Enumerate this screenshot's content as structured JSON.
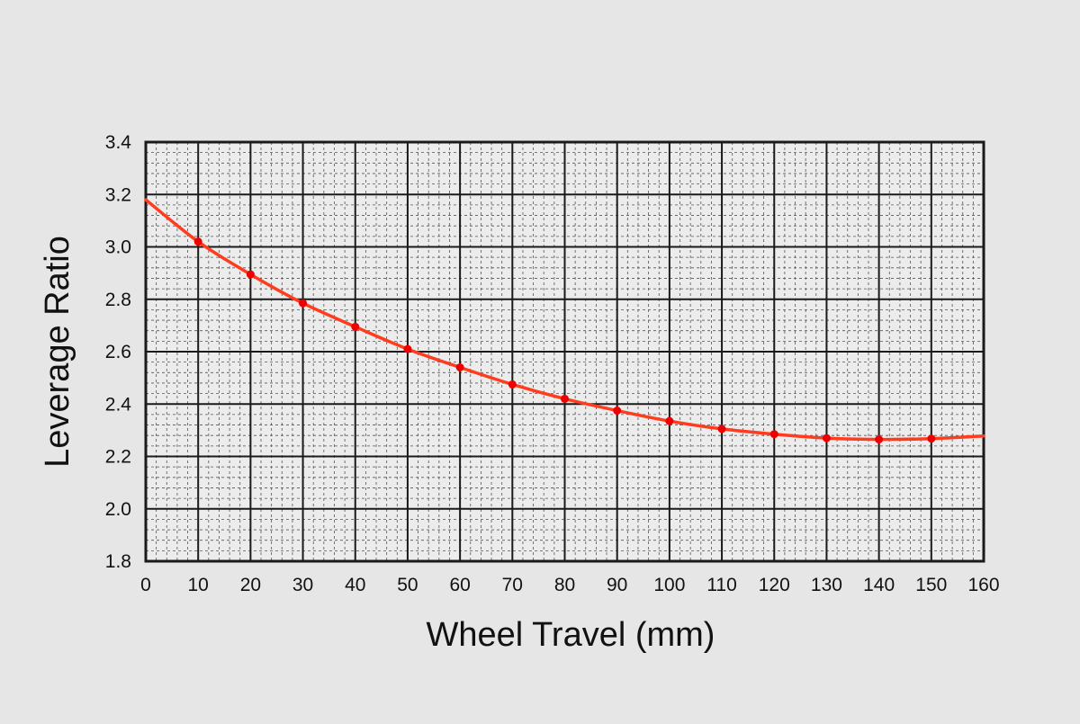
{
  "chart_data": {
    "type": "line",
    "title": "",
    "xlabel": "Wheel Travel (mm)",
    "ylabel": "Leverage Ratio",
    "xlim": [
      0,
      160
    ],
    "ylim": [
      1.8,
      3.4
    ],
    "x_ticks": [
      0,
      10,
      20,
      30,
      40,
      50,
      60,
      70,
      80,
      90,
      100,
      110,
      120,
      130,
      140,
      150,
      160
    ],
    "y_ticks": [
      1.8,
      2.0,
      2.2,
      2.4,
      2.6,
      2.8,
      3.0,
      3.2,
      3.4
    ],
    "x_tick_labels": [
      "0",
      "10",
      "20",
      "30",
      "40",
      "50",
      "60",
      "70",
      "80",
      "90",
      "100",
      "110",
      "120",
      "130",
      "140",
      "150",
      "160"
    ],
    "y_tick_labels": [
      "1.8",
      "2.0",
      "2.2",
      "2.4",
      "2.6",
      "2.8",
      "3.0",
      "3.2",
      "3.4"
    ],
    "grid": true,
    "minor_grid": true,
    "legend": "none",
    "series": [
      {
        "color": "#ff3c1e",
        "marker_color": "#ee0000",
        "curve_x": [
          0,
          10,
          20,
          30,
          40,
          50,
          60,
          70,
          80,
          90,
          100,
          110,
          120,
          130,
          140,
          150,
          160
        ],
        "curve_y": [
          3.18,
          3.02,
          2.895,
          2.785,
          2.695,
          2.61,
          2.54,
          2.475,
          2.42,
          2.375,
          2.335,
          2.305,
          2.285,
          2.27,
          2.265,
          2.268,
          2.278
        ],
        "markers_x": [
          10,
          20,
          30,
          40,
          50,
          60,
          70,
          80,
          90,
          100,
          110,
          120,
          130,
          140,
          150
        ],
        "markers_y": [
          3.02,
          2.895,
          2.785,
          2.695,
          2.61,
          2.54,
          2.475,
          2.42,
          2.375,
          2.335,
          2.305,
          2.285,
          2.27,
          2.265,
          2.268
        ]
      }
    ]
  },
  "colors": {
    "background": "#e6e6e6",
    "plot_background": "#ececec",
    "major_grid": "#1a1a1a",
    "minor_grid": "#555555",
    "text": "#111111"
  }
}
